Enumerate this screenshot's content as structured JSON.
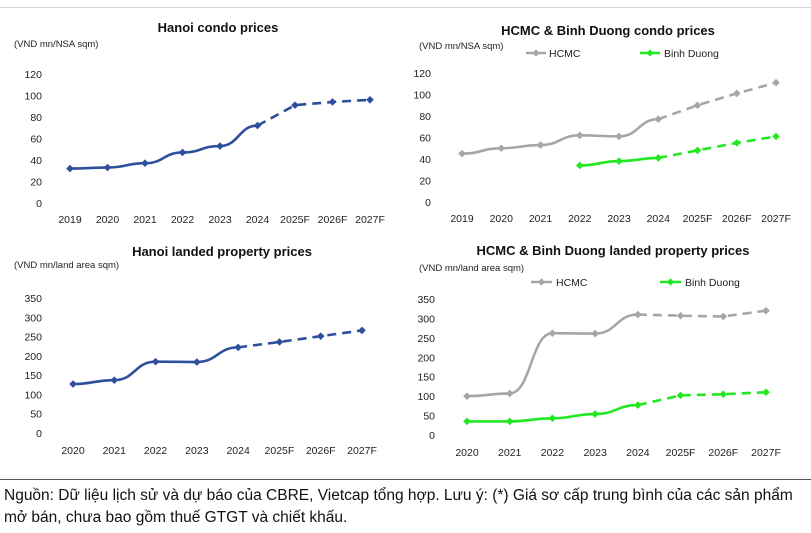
{
  "footnote": "Nguồn: Dữ liệu lịch sử và dự báo của CBRE, Vietcap tổng hợp. Lưu ý: (*) Giá sơ cấp trung bình của các sản phẩm mở bán, chưa bao gồm thuế GTGT và chiết khấu.",
  "colors": {
    "hanoi_series": "#2e4f9c",
    "hcmc_series": "#a6a6a6",
    "binh_duong_series": "#22e822"
  },
  "chart_data": [
    {
      "id": "hanoi-condo",
      "type": "line",
      "title": "Hanoi condo prices",
      "unit_label": "(VND mn/NSA sqm)",
      "categories": [
        "2019",
        "2020",
        "2021",
        "2022",
        "2023",
        "2024",
        "2025F",
        "2026F",
        "2027F"
      ],
      "forecast_start": "2025F",
      "ylim": [
        0,
        120
      ],
      "yticks": [
        0,
        20,
        40,
        60,
        80,
        100,
        120
      ],
      "legend": "none",
      "grid": false,
      "series": [
        {
          "name": "",
          "color": "#2e4f9c",
          "marker": "diamond",
          "values": [
            32,
            33,
            37,
            47,
            53,
            72,
            91,
            94,
            96
          ]
        }
      ]
    },
    {
      "id": "hcmc-bd-condo",
      "type": "line",
      "title": "HCMC & Binh Duong condo prices",
      "unit_label": "(VND mn/NSA sqm)",
      "categories": [
        "2019",
        "2020",
        "2021",
        "2022",
        "2023",
        "2024",
        "2025F",
        "2026F",
        "2027F"
      ],
      "forecast_start": "2025F",
      "ylim": [
        0,
        120
      ],
      "yticks": [
        0,
        20,
        40,
        60,
        80,
        100,
        120
      ],
      "legend": "top",
      "grid": false,
      "series": [
        {
          "name": "HCMC",
          "color": "#a6a6a6",
          "marker": "diamond",
          "values": [
            45,
            50,
            53,
            62,
            61,
            77,
            90,
            101,
            111
          ]
        },
        {
          "name": "Binh Duong",
          "color": "#22e822",
          "marker": "diamond",
          "values": [
            null,
            null,
            null,
            34,
            38,
            41,
            48,
            55,
            61
          ]
        }
      ]
    },
    {
      "id": "hanoi-landed",
      "type": "line",
      "title": "Hanoi landed property prices",
      "unit_label": "(VND mn/land area sqm)",
      "categories": [
        "2020",
        "2021",
        "2022",
        "2023",
        "2024",
        "2025F",
        "2026F",
        "2027F"
      ],
      "forecast_start": "2025F",
      "ylim": [
        0,
        350
      ],
      "yticks": [
        0,
        50,
        100,
        150,
        200,
        250,
        300,
        350
      ],
      "legend": "none",
      "grid": false,
      "series": [
        {
          "name": "",
          "color": "#2e4f9c",
          "marker": "diamond",
          "values": [
            127,
            137,
            185,
            184,
            222,
            236,
            251,
            266
          ]
        }
      ]
    },
    {
      "id": "hcmc-bd-landed",
      "type": "line",
      "title": "HCMC & Binh Duong landed property prices",
      "unit_label": "(VND mn/land area sqm)",
      "categories": [
        "2020",
        "2021",
        "2022",
        "2023",
        "2024",
        "2025F",
        "2026F",
        "2027F"
      ],
      "forecast_start": "2025F",
      "ylim": [
        0,
        350
      ],
      "yticks": [
        0,
        50,
        100,
        150,
        200,
        250,
        300,
        350
      ],
      "legend": "top",
      "grid": false,
      "series": [
        {
          "name": "HCMC",
          "color": "#a6a6a6",
          "marker": "diamond",
          "values": [
            100,
            107,
            262,
            261,
            310,
            307,
            305,
            320
          ]
        },
        {
          "name": "Binh Duong",
          "color": "#22e822",
          "marker": "diamond",
          "values": [
            35,
            35,
            43,
            54,
            77,
            102,
            105,
            110
          ]
        }
      ]
    }
  ]
}
